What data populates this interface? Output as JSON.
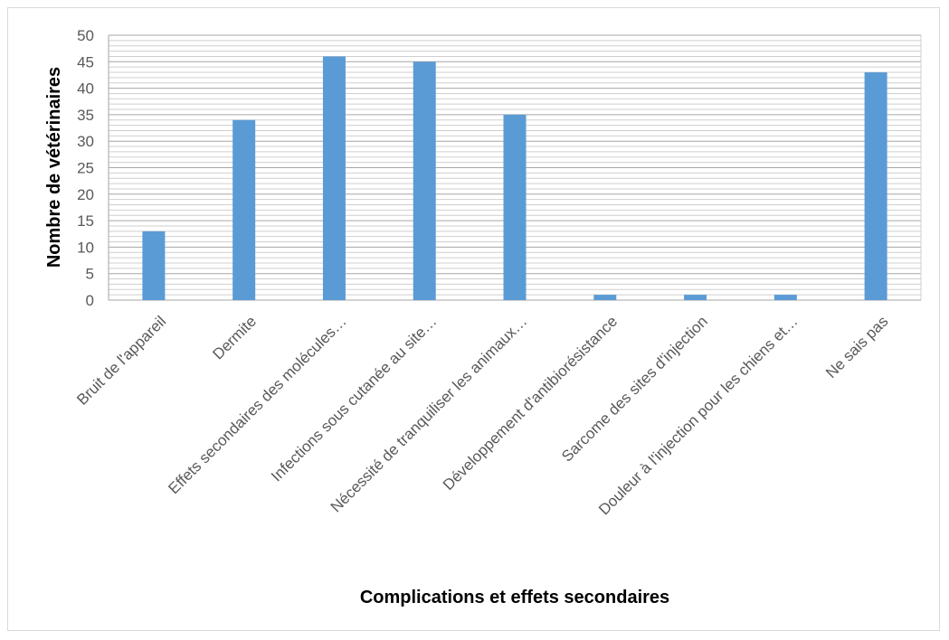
{
  "chart_data": {
    "type": "bar",
    "title": "",
    "xlabel": "Complications et effets secondaires",
    "ylabel": "Nombre de vétérinaires",
    "ylim": [
      0,
      50
    ],
    "ytick_step": 5,
    "minor_gridline_step": 1,
    "grid": true,
    "legend": "none",
    "bar_color": "#5b9bd5",
    "categories": [
      "Bruit de l'appareil",
      "Dermite",
      "Effets secondaires des molécules…",
      "Infections sous cutanée au site…",
      "Nécessité de tranquiliser les animaux…",
      "Développement d'antibiorésistance",
      "Sarcome des sites d'injection",
      "Douleur à l'injection pour les chiens et…",
      "Ne sais pas"
    ],
    "values": [
      13,
      34,
      46,
      45,
      35,
      1,
      1,
      1,
      43
    ],
    "yticks": [
      "0",
      "5",
      "10",
      "15",
      "20",
      "25",
      "30",
      "35",
      "40",
      "45",
      "50"
    ]
  }
}
